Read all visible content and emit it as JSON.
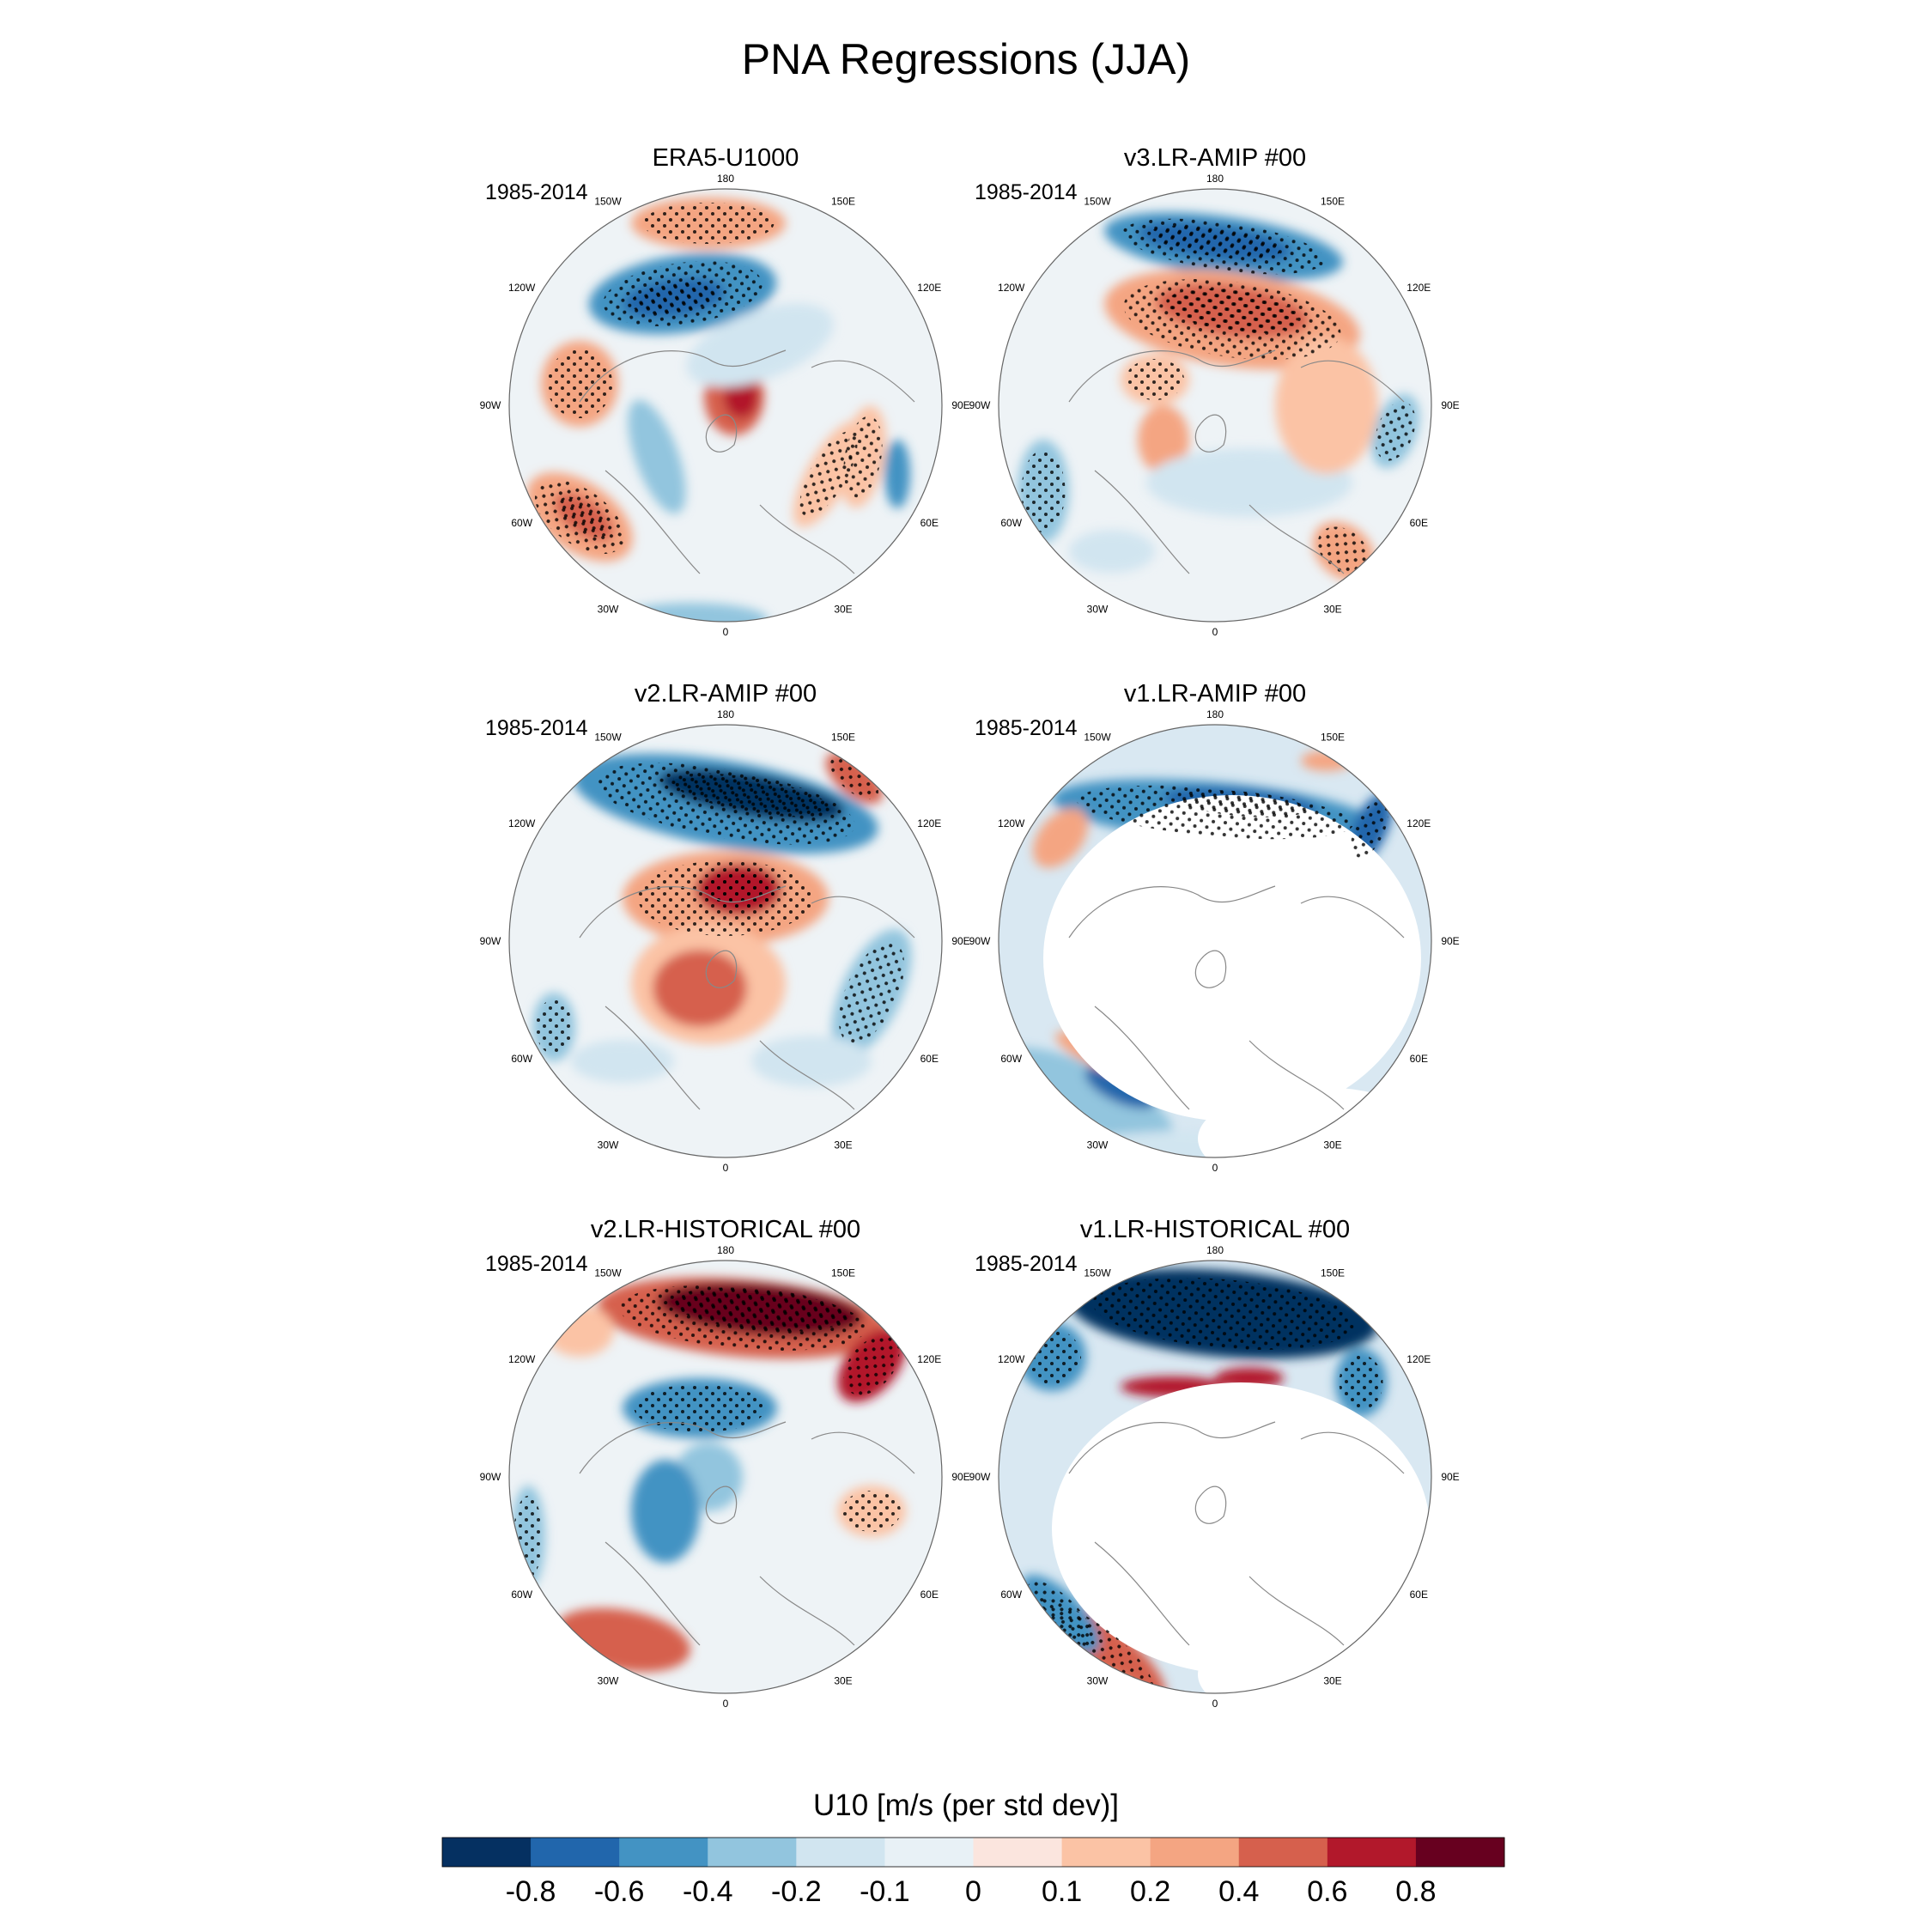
{
  "title": "PNA Regressions (JJA)",
  "longitude_labels": {
    "180": "180",
    "150E": "150E",
    "120E": "120E",
    "90E": "90E",
    "60E": "60E",
    "30E": "30E",
    "0": "0",
    "30W": "30W",
    "60W": "60W",
    "90W": "90W",
    "120W": "120W",
    "150W": "150W"
  },
  "panels": [
    {
      "id": "p1",
      "title": "ERA5-U1000",
      "period": "1985-2014"
    },
    {
      "id": "p2",
      "title": "v3.LR-AMIP  #00",
      "period": "1985-2014"
    },
    {
      "id": "p3",
      "title": "v2.LR-AMIP  #00",
      "period": "1985-2014"
    },
    {
      "id": "p4",
      "title": "v1.LR-AMIP  #00",
      "period": "1985-2014"
    },
    {
      "id": "p5",
      "title": "v2.LR-HISTORICAL  #00",
      "period": "1985-2014"
    },
    {
      "id": "p6",
      "title": "v1.LR-HISTORICAL  #00",
      "period": "1985-2014"
    }
  ],
  "colorbar": {
    "title": "U10 [m/s (per std dev)]",
    "tick_labels": [
      "-0.8",
      "-0.6",
      "-0.4",
      "-0.2",
      "-0.1",
      "0",
      "0.1",
      "0.2",
      "0.4",
      "0.6",
      "0.8"
    ],
    "colors": [
      "#053061",
      "#2166ac",
      "#4393c3",
      "#92c5de",
      "#d1e5f0",
      "#e8f1f6",
      "#fbe5de",
      "#fbc3a5",
      "#f4a582",
      "#d6604d",
      "#b2182b",
      "#67001f"
    ]
  }
}
